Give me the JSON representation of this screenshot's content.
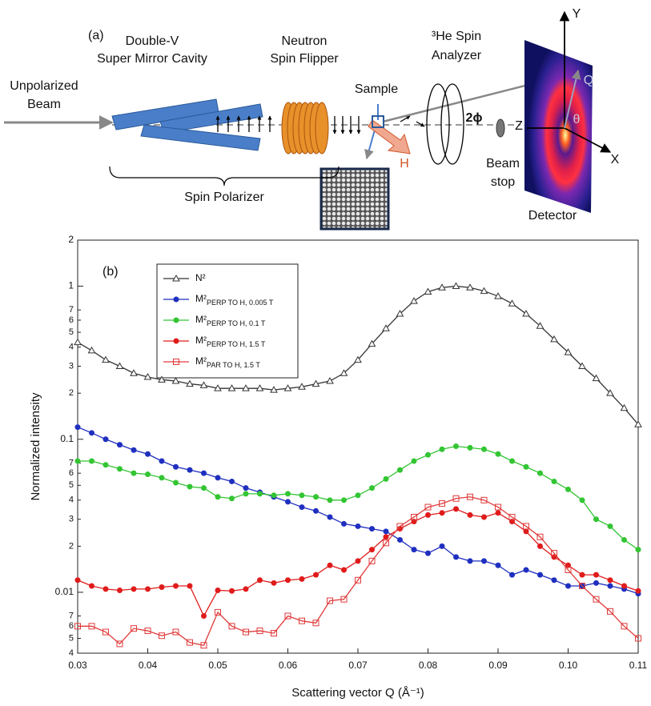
{
  "diagram": {
    "panel": "(a)",
    "beam_label": [
      "Unpolarized",
      "Beam"
    ],
    "mirror_label": [
      "Double-V",
      "Super Mirror Cavity"
    ],
    "flipper_label": [
      "Neutron",
      "Spin Flipper"
    ],
    "sample_label": "Sample",
    "field_label": "H",
    "analyzer_label": [
      "³He Spin",
      "Analyzer"
    ],
    "angle_label": "2ϕ",
    "beamstop_label": [
      "Beam",
      "stop"
    ],
    "axis_z": "Z",
    "axis_y": "Y",
    "axis_x": "X",
    "axis_q": "Q",
    "angle_theta": "θ",
    "detector_label": "Detector",
    "polarizer_label": "Spin Polarizer"
  },
  "chart_data": {
    "type": "line",
    "panel": "(b)",
    "ylabel": "Normalized intensity",
    "xlabel": "Scattering vector Q (Å⁻¹)",
    "log_y": true,
    "grid": false,
    "legend": "upper left",
    "xlim": [
      0.03,
      0.11
    ],
    "xticks": [
      0.03,
      0.04,
      0.05,
      0.06,
      0.07,
      0.08,
      0.09,
      {
        "value": 0.1,
        "label": "0.10"
      },
      0.11
    ],
    "ylim": [
      0.004,
      2
    ],
    "yticks": [
      2,
      1,
      {
        "value": 0.7,
        "label": "7"
      },
      {
        "value": 0.6,
        "label": "6"
      },
      {
        "value": 0.5,
        "label": "5"
      },
      {
        "value": 0.4,
        "label": "4"
      },
      {
        "value": 0.3,
        "label": "3"
      },
      {
        "value": 0.2,
        "label": "2"
      },
      0.1,
      {
        "value": 0.07,
        "label": "7"
      },
      {
        "value": 0.06,
        "label": "6"
      },
      {
        "value": 0.05,
        "label": "5"
      },
      {
        "value": 0.04,
        "label": "4"
      },
      {
        "value": 0.03,
        "label": "3"
      },
      {
        "value": 0.02,
        "label": "2"
      },
      0.01,
      {
        "value": 0.007,
        "label": "7"
      },
      {
        "value": 0.006,
        "label": "6"
      },
      {
        "value": 0.005,
        "label": "5"
      },
      {
        "value": 0.004,
        "label": "4"
      }
    ],
    "x": [
      0.03,
      0.032,
      0.034,
      0.036,
      0.038,
      0.04,
      0.042,
      0.044,
      0.046,
      0.048,
      0.05,
      0.052,
      0.054,
      0.056,
      0.058,
      0.06,
      0.062,
      0.064,
      0.066,
      0.068,
      0.07,
      0.072,
      0.074,
      0.076,
      0.078,
      0.08,
      0.082,
      0.084,
      0.086,
      0.088,
      0.09,
      0.092,
      0.094,
      0.096,
      0.098,
      0.1,
      0.102,
      0.104,
      0.106,
      0.108,
      0.11
    ],
    "series": [
      {
        "name": "N²",
        "subscript": "",
        "color": "#333333",
        "marker": "triangle",
        "values": [
          0.43,
          0.38,
          0.33,
          0.3,
          0.27,
          0.255,
          0.245,
          0.24,
          0.23,
          0.225,
          0.215,
          0.215,
          0.215,
          0.215,
          0.21,
          0.215,
          0.22,
          0.23,
          0.24,
          0.27,
          0.33,
          0.42,
          0.53,
          0.66,
          0.8,
          0.92,
          0.98,
          1.0,
          0.98,
          0.93,
          0.86,
          0.77,
          0.66,
          0.55,
          0.45,
          0.37,
          0.3,
          0.25,
          0.2,
          0.16,
          0.125
        ]
      },
      {
        "name": "M²",
        "subscript": "PERP TO H, 0.005 T",
        "color": "#1f2fbf",
        "marker": "circle",
        "values": [
          0.12,
          0.11,
          0.1,
          0.092,
          0.085,
          0.08,
          0.072,
          0.066,
          0.063,
          0.06,
          0.056,
          0.053,
          0.048,
          0.045,
          0.042,
          0.039,
          0.036,
          0.034,
          0.031,
          0.028,
          0.027,
          0.026,
          0.025,
          0.022,
          0.019,
          0.018,
          0.02,
          0.017,
          0.016,
          0.016,
          0.015,
          0.013,
          0.014,
          0.013,
          0.012,
          0.011,
          0.011,
          0.0115,
          0.011,
          0.0105,
          0.0098
        ]
      },
      {
        "name": "M²",
        "subscript": "PERP TO H, 0.1 T",
        "color": "#33c533",
        "marker": "circle",
        "values": [
          0.072,
          0.072,
          0.068,
          0.064,
          0.06,
          0.059,
          0.056,
          0.052,
          0.049,
          0.048,
          0.042,
          0.041,
          0.044,
          0.044,
          0.043,
          0.044,
          0.043,
          0.042,
          0.04,
          0.04,
          0.043,
          0.048,
          0.055,
          0.063,
          0.072,
          0.079,
          0.086,
          0.09,
          0.088,
          0.086,
          0.08,
          0.072,
          0.066,
          0.06,
          0.053,
          0.047,
          0.04,
          0.03,
          0.027,
          0.022,
          0.019
        ]
      },
      {
        "name": "M²",
        "subscript": "PERP TO H, 1.5 T",
        "color": "#e01b1b",
        "marker": "circle",
        "values": [
          0.012,
          0.011,
          0.0105,
          0.0103,
          0.0105,
          0.0105,
          0.0108,
          0.011,
          0.011,
          0.007,
          0.0103,
          0.0102,
          0.0105,
          0.012,
          0.0115,
          0.012,
          0.0122,
          0.013,
          0.015,
          0.014,
          0.016,
          0.019,
          0.023,
          0.026,
          0.029,
          0.032,
          0.033,
          0.035,
          0.032,
          0.031,
          0.033,
          0.029,
          0.025,
          0.02,
          0.017,
          0.015,
          0.013,
          0.013,
          0.012,
          0.011,
          0.0102
        ]
      },
      {
        "name": "M²",
        "subscript": "PAR TO H, 1.5 T",
        "color": "#e03a3a",
        "marker": "square",
        "values": [
          0.006,
          0.006,
          0.0055,
          0.0046,
          0.0058,
          0.0056,
          0.0052,
          0.0055,
          0.0047,
          0.0045,
          0.0074,
          0.006,
          0.0055,
          0.0056,
          0.0054,
          0.007,
          0.0065,
          0.0063,
          0.0088,
          0.009,
          0.012,
          0.016,
          0.021,
          0.027,
          0.031,
          0.036,
          0.038,
          0.041,
          0.042,
          0.04,
          0.036,
          0.031,
          0.027,
          0.023,
          0.018,
          0.014,
          0.011,
          0.009,
          0.0075,
          0.006,
          0.005
        ]
      }
    ]
  }
}
